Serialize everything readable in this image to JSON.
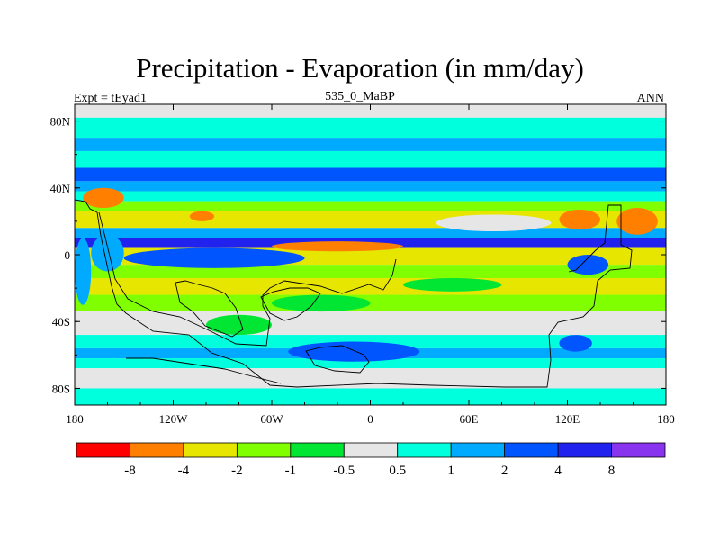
{
  "chart_data": {
    "type": "heatmap",
    "title": "Precipitation - Evaporation (in mm/day)",
    "subtitle": "535_0_MaBP",
    "left_label": "Expt = tEyad1",
    "right_label": "ANN",
    "x_ticks": [
      {
        "value": -180,
        "label": "180"
      },
      {
        "value": -120,
        "label": "120W"
      },
      {
        "value": -60,
        "label": "60W"
      },
      {
        "value": 0,
        "label": "0"
      },
      {
        "value": 60,
        "label": "60E"
      },
      {
        "value": 120,
        "label": "120E"
      },
      {
        "value": 180,
        "label": "180"
      }
    ],
    "y_ticks": [
      {
        "value": 80,
        "label": "80N"
      },
      {
        "value": 40,
        "label": "40N"
      },
      {
        "value": 0,
        "label": "0"
      },
      {
        "value": -40,
        "label": "40S"
      },
      {
        "value": -80,
        "label": "80S"
      }
    ],
    "xlim": [
      -180,
      180
    ],
    "ylim": [
      -90,
      90
    ],
    "colorbar": {
      "colors": [
        "#ff0000",
        "#ff8000",
        "#e6e600",
        "#80ff00",
        "#00e633",
        "#e6e6e6",
        "#00ffdd",
        "#00aaff",
        "#0055ff",
        "#2222ee",
        "#8833ee"
      ],
      "labels": [
        "-8",
        "-4",
        "-2",
        "-1",
        "-0.5",
        "0.5",
        "1",
        "2",
        "4",
        "8"
      ]
    },
    "bands": [
      {
        "lat_top": 90,
        "lat_bottom": 82,
        "level": 5
      },
      {
        "lat_top": 82,
        "lat_bottom": 70,
        "level": 6
      },
      {
        "lat_top": 70,
        "lat_bottom": 62,
        "level": 7
      },
      {
        "lat_top": 62,
        "lat_bottom": 52,
        "level": 6
      },
      {
        "lat_top": 52,
        "lat_bottom": 44,
        "level": 8
      },
      {
        "lat_top": 44,
        "lat_bottom": 38,
        "level": 7
      },
      {
        "lat_top": 38,
        "lat_bottom": 32,
        "level": 6
      },
      {
        "lat_top": 32,
        "lat_bottom": 26,
        "level": 3
      },
      {
        "lat_top": 26,
        "lat_bottom": 16,
        "level": 2
      },
      {
        "lat_top": 16,
        "lat_bottom": 10,
        "level": 7
      },
      {
        "lat_top": 10,
        "lat_bottom": 4,
        "level": 9
      },
      {
        "lat_top": 4,
        "lat_bottom": -6,
        "level": 2
      },
      {
        "lat_top": -6,
        "lat_bottom": -14,
        "level": 3
      },
      {
        "lat_top": -14,
        "lat_bottom": -24,
        "level": 2
      },
      {
        "lat_top": -24,
        "lat_bottom": -34,
        "level": 3
      },
      {
        "lat_top": -34,
        "lat_bottom": -48,
        "level": 5
      },
      {
        "lat_top": -48,
        "lat_bottom": -56,
        "level": 6
      },
      {
        "lat_top": -56,
        "lat_bottom": -62,
        "level": 7
      },
      {
        "lat_top": -62,
        "lat_bottom": -68,
        "level": 6
      },
      {
        "lat_top": -68,
        "lat_bottom": -80,
        "level": 5
      },
      {
        "lat_top": -80,
        "lat_bottom": -90,
        "level": 6
      }
    ],
    "patches": [
      {
        "lon_min": -175,
        "lon_max": -150,
        "lat_min": 28,
        "lat_max": 40,
        "level": 1
      },
      {
        "lon_min": -110,
        "lon_max": -95,
        "lat_min": 20,
        "lat_max": 26,
        "level": 1
      },
      {
        "lon_min": 115,
        "lon_max": 140,
        "lat_min": 15,
        "lat_max": 27,
        "level": 1
      },
      {
        "lon_min": 150,
        "lon_max": 175,
        "lat_min": 12,
        "lat_max": 28,
        "level": 1
      },
      {
        "lon_min": -60,
        "lon_max": 20,
        "lat_min": 2,
        "lat_max": 8,
        "level": 1
      },
      {
        "lon_min": -150,
        "lon_max": -40,
        "lat_min": -8,
        "lat_max": 4,
        "level": 8
      },
      {
        "lon_min": -170,
        "lon_max": -150,
        "lat_min": -10,
        "lat_max": 12,
        "level": 7
      },
      {
        "lon_min": 120,
        "lon_max": 145,
        "lat_min": -12,
        "lat_max": 0,
        "level": 8
      },
      {
        "lon_min": -50,
        "lon_max": 30,
        "lat_min": -64,
        "lat_max": -52,
        "level": 8
      },
      {
        "lon_min": 115,
        "lon_max": 135,
        "lat_min": -58,
        "lat_max": -48,
        "level": 8
      },
      {
        "lon_min": 60,
        "lon_max": 180,
        "lat_min": -48,
        "lat_max": -36,
        "level": 5
      },
      {
        "lon_min": -100,
        "lon_max": -60,
        "lat_min": -48,
        "lat_max": -36,
        "level": 4
      },
      {
        "lon_min": -60,
        "lon_max": 0,
        "lat_min": -34,
        "lat_max": -24,
        "level": 4
      },
      {
        "lon_min": 20,
        "lon_max": 80,
        "lat_min": -22,
        "lat_max": -14,
        "level": 4
      },
      {
        "lon_min": 40,
        "lon_max": 110,
        "lat_min": 14,
        "lat_max": 24,
        "level": 5
      },
      {
        "lon_min": -180,
        "lon_max": -170,
        "lat_min": -30,
        "lat_max": 10,
        "level": 7
      }
    ]
  }
}
